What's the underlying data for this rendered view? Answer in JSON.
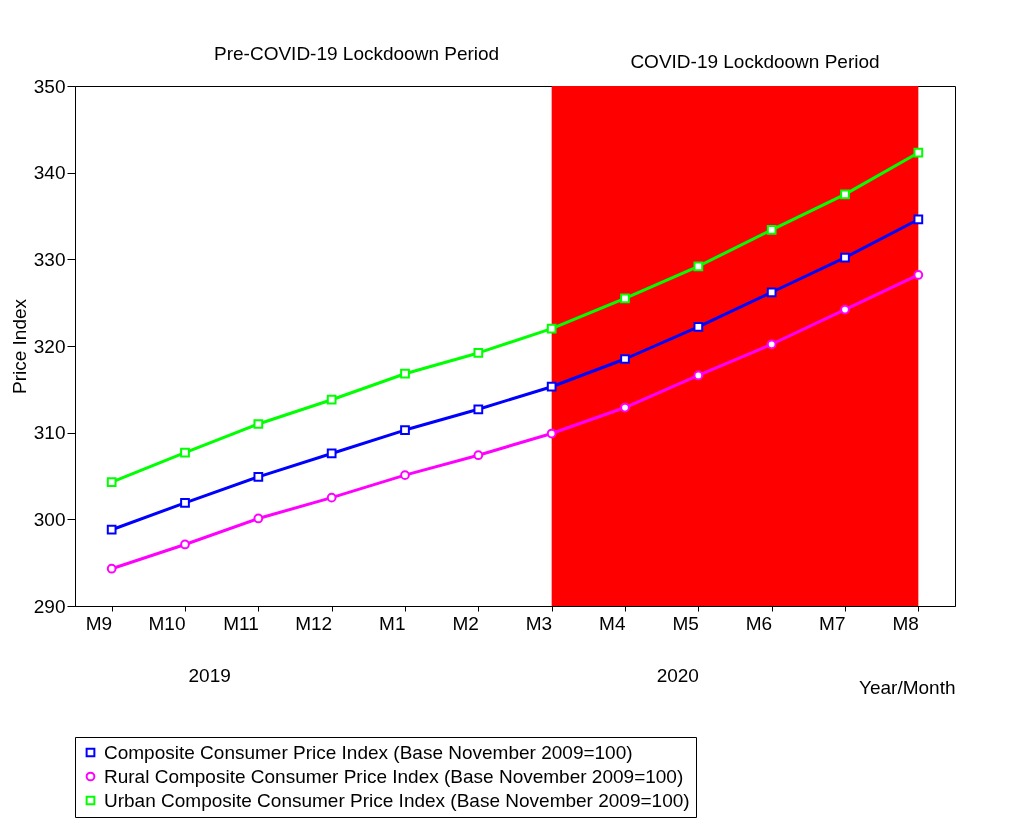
{
  "chart_data": {
    "type": "line",
    "ylabel": "Price Index",
    "xlabel": "Year/Month",
    "categories": [
      "M9",
      "M10",
      "M11",
      "M12",
      "M1",
      "M2",
      "M3",
      "M4",
      "M5",
      "M6",
      "M7",
      "M8"
    ],
    "series": [
      {
        "name": "Composite Consumer Price Index (Base November 2009=100)",
        "color": "#0000ff",
        "marker": "square",
        "values": [
          298.8,
          301.9,
          304.9,
          307.6,
          310.3,
          312.7,
          315.3,
          318.5,
          322.2,
          326.2,
          330.2,
          334.6
        ]
      },
      {
        "name": "Rural Composite Consumer Price Index (Base November 2009=100)",
        "color": "#ff00ff",
        "marker": "circle",
        "values": [
          294.3,
          297.1,
          300.1,
          302.5,
          305.1,
          307.4,
          309.9,
          312.9,
          316.6,
          320.2,
          324.2,
          328.2
        ]
      },
      {
        "name": "Urban Composite Consumer Price Index (Base November 2009=100)",
        "color": "#00ff00",
        "marker": "square",
        "values": [
          304.3,
          307.7,
          311.0,
          313.8,
          316.8,
          319.2,
          322.0,
          325.5,
          329.2,
          333.4,
          337.5,
          342.3
        ]
      }
    ],
    "ylim": [
      290,
      350
    ],
    "yticks": [
      290,
      300,
      310,
      320,
      330,
      340,
      350
    ],
    "grid": false,
    "legend": "bottom",
    "bands": [
      {
        "axis": "x",
        "from": "M3",
        "to": "M8",
        "label": "COVID-19 Lockdoown Period",
        "color": "#ff0000"
      }
    ],
    "annotations": [
      "Pre-COVID-19 Lockdoown Period",
      "2019",
      "2020"
    ]
  }
}
